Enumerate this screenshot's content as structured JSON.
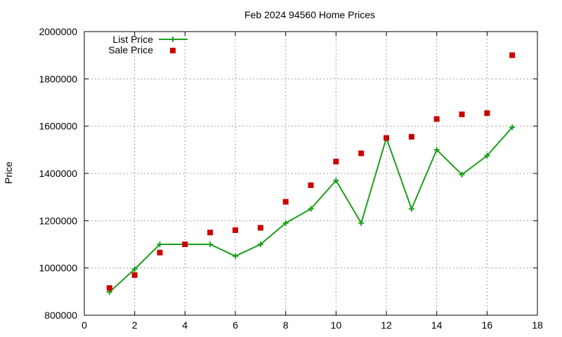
{
  "chart_data": {
    "type": "line",
    "title": "Feb 2024 94560 Home Prices",
    "xlabel": "",
    "ylabel": "Price",
    "xlim": [
      0,
      18
    ],
    "ylim": [
      800000,
      2000000
    ],
    "xticks": [
      0,
      2,
      4,
      6,
      8,
      10,
      12,
      14,
      16,
      18
    ],
    "yticks": [
      800000,
      1000000,
      1200000,
      1400000,
      1600000,
      1800000,
      2000000
    ],
    "xtick_labels": [
      "0",
      "2",
      "4",
      "6",
      "8",
      "10",
      "12",
      "14",
      "16",
      "18"
    ],
    "ytick_labels": [
      "800000",
      "1000000",
      "1200000",
      "1400000",
      "1600000",
      "1800000",
      "2000000"
    ],
    "grid": true,
    "legend_position": "top-left",
    "series": [
      {
        "name": "List Price",
        "style": "linespoints",
        "marker": "plus",
        "color": "#1aa01a",
        "x": [
          1,
          2,
          3,
          4,
          5,
          6,
          7,
          8,
          9,
          10,
          11,
          12,
          13,
          14,
          15,
          16,
          17
        ],
        "y": [
          898000,
          995000,
          1100000,
          1100000,
          1100000,
          1050000,
          1100000,
          1190000,
          1250000,
          1370000,
          1190000,
          1550000,
          1250000,
          1500000,
          1395000,
          1475000,
          1595000
        ]
      },
      {
        "name": "Sale Price",
        "style": "points",
        "marker": "square",
        "color": "#cc0000",
        "x": [
          1,
          2,
          3,
          4,
          5,
          6,
          7,
          8,
          9,
          10,
          11,
          12,
          13,
          14,
          15,
          16,
          17
        ],
        "y": [
          915000,
          970000,
          1065000,
          1100000,
          1150000,
          1160000,
          1170000,
          1280000,
          1350000,
          1450000,
          1485000,
          1550000,
          1555000,
          1630000,
          1650000,
          1655000,
          1900000
        ]
      }
    ]
  }
}
